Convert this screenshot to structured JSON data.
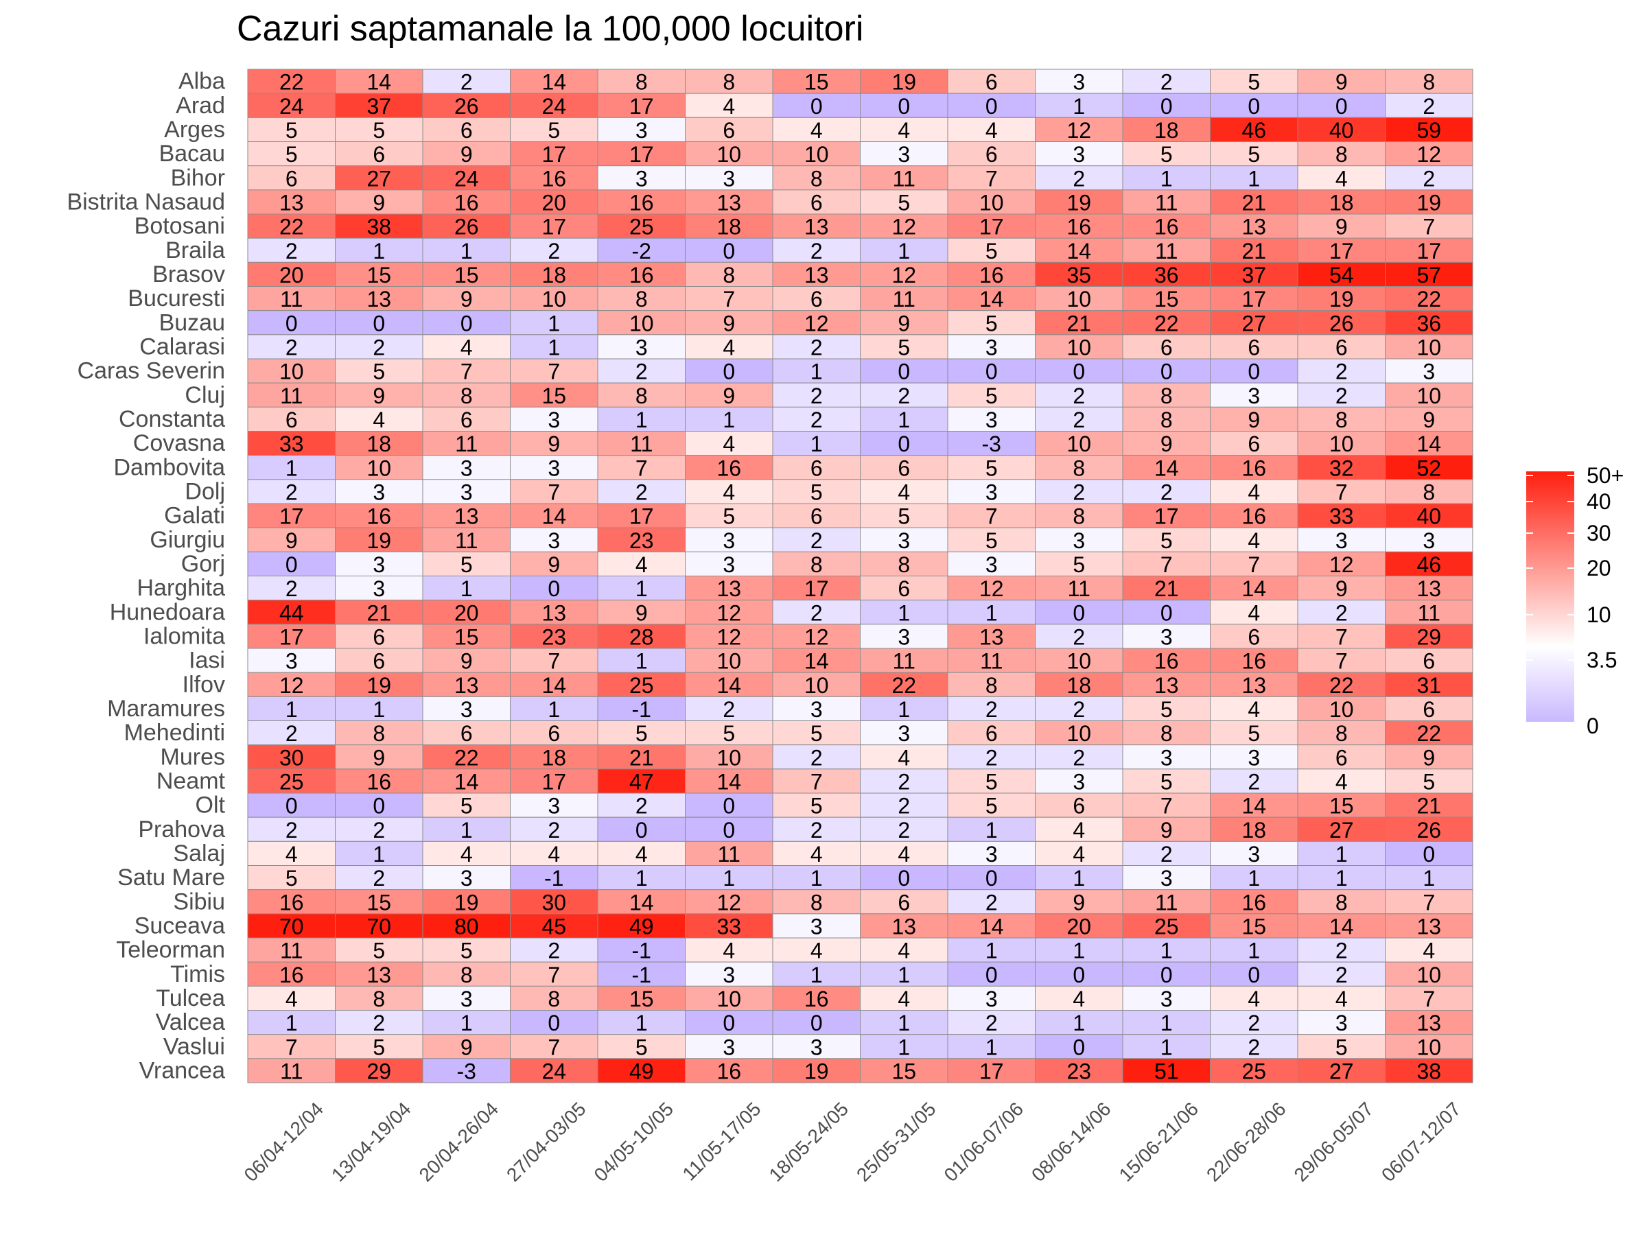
{
  "chart_data": {
    "type": "heatmap",
    "title": "Cazuri saptamanale la 100,000 locuitori",
    "xlabel": "",
    "ylabel": "",
    "columns": [
      "06/04-12/04",
      "13/04-19/04",
      "20/04-26/04",
      "27/04-03/05",
      "04/05-10/05",
      "11/05-17/05",
      "18/05-24/05",
      "25/05-31/05",
      "01/06-07/06",
      "08/06-14/06",
      "15/06-21/06",
      "22/06-28/06",
      "29/06-05/07",
      "06/07-12/07"
    ],
    "rows": [
      {
        "name": "Alba",
        "values": [
          22,
          14,
          2,
          14,
          8,
          8,
          15,
          19,
          6,
          3,
          2,
          5,
          9,
          8
        ]
      },
      {
        "name": "Arad",
        "values": [
          24,
          37,
          26,
          24,
          17,
          4,
          0,
          0,
          0,
          1,
          0,
          0,
          0,
          2
        ]
      },
      {
        "name": "Arges",
        "values": [
          5,
          5,
          6,
          5,
          3,
          6,
          4,
          4,
          4,
          12,
          18,
          46,
          40,
          59
        ]
      },
      {
        "name": "Bacau",
        "values": [
          5,
          6,
          9,
          17,
          17,
          10,
          10,
          3,
          6,
          3,
          5,
          5,
          8,
          12
        ]
      },
      {
        "name": "Bihor",
        "values": [
          6,
          27,
          24,
          16,
          3,
          3,
          8,
          11,
          7,
          2,
          1,
          1,
          4,
          2
        ]
      },
      {
        "name": "Bistrita Nasaud",
        "values": [
          13,
          9,
          16,
          20,
          16,
          13,
          6,
          5,
          10,
          19,
          11,
          21,
          18,
          19
        ]
      },
      {
        "name": "Botosani",
        "values": [
          22,
          38,
          26,
          17,
          25,
          18,
          13,
          12,
          17,
          16,
          16,
          13,
          9,
          7
        ]
      },
      {
        "name": "Braila",
        "values": [
          2,
          1,
          1,
          2,
          -2,
          0,
          2,
          1,
          5,
          14,
          11,
          21,
          17,
          17
        ]
      },
      {
        "name": "Brasov",
        "values": [
          20,
          15,
          15,
          18,
          16,
          8,
          13,
          12,
          16,
          35,
          36,
          37,
          54,
          57
        ]
      },
      {
        "name": "Bucuresti",
        "values": [
          11,
          13,
          9,
          10,
          8,
          7,
          6,
          11,
          14,
          10,
          15,
          17,
          19,
          22
        ]
      },
      {
        "name": "Buzau",
        "values": [
          0,
          0,
          0,
          1,
          10,
          9,
          12,
          9,
          5,
          21,
          22,
          27,
          26,
          36
        ]
      },
      {
        "name": "Calarasi",
        "values": [
          2,
          2,
          4,
          1,
          3,
          4,
          2,
          5,
          3,
          10,
          6,
          6,
          6,
          10
        ]
      },
      {
        "name": "Caras Severin",
        "values": [
          10,
          5,
          7,
          7,
          2,
          0,
          1,
          0,
          0,
          0,
          0,
          0,
          2,
          3
        ]
      },
      {
        "name": "Cluj",
        "values": [
          11,
          9,
          8,
          15,
          8,
          9,
          2,
          2,
          5,
          2,
          8,
          3,
          2,
          10
        ]
      },
      {
        "name": "Constanta",
        "values": [
          6,
          4,
          6,
          3,
          1,
          1,
          2,
          1,
          3,
          2,
          8,
          9,
          8,
          9
        ]
      },
      {
        "name": "Covasna",
        "values": [
          33,
          18,
          11,
          9,
          11,
          4,
          1,
          0,
          -3,
          10,
          9,
          6,
          10,
          14
        ]
      },
      {
        "name": "Dambovita",
        "values": [
          1,
          10,
          3,
          3,
          7,
          16,
          6,
          6,
          5,
          8,
          14,
          16,
          32,
          52
        ]
      },
      {
        "name": "Dolj",
        "values": [
          2,
          3,
          3,
          7,
          2,
          4,
          5,
          4,
          3,
          2,
          2,
          4,
          7,
          8
        ]
      },
      {
        "name": "Galati",
        "values": [
          17,
          16,
          13,
          14,
          17,
          5,
          6,
          5,
          7,
          8,
          17,
          16,
          33,
          40
        ]
      },
      {
        "name": "Giurgiu",
        "values": [
          9,
          19,
          11,
          3,
          23,
          3,
          2,
          3,
          5,
          3,
          5,
          4,
          3,
          3
        ]
      },
      {
        "name": "Gorj",
        "values": [
          0,
          3,
          5,
          9,
          4,
          3,
          8,
          8,
          3,
          5,
          7,
          7,
          12,
          46
        ]
      },
      {
        "name": "Harghita",
        "values": [
          2,
          3,
          1,
          0,
          1,
          13,
          17,
          6,
          12,
          11,
          21,
          14,
          9,
          13
        ]
      },
      {
        "name": "Hunedoara",
        "values": [
          44,
          21,
          20,
          13,
          9,
          12,
          2,
          1,
          1,
          0,
          0,
          4,
          2,
          11
        ]
      },
      {
        "name": "Ialomita",
        "values": [
          17,
          6,
          15,
          23,
          28,
          12,
          12,
          3,
          13,
          2,
          3,
          6,
          7,
          29
        ]
      },
      {
        "name": "Iasi",
        "values": [
          3,
          6,
          9,
          7,
          1,
          10,
          14,
          11,
          11,
          10,
          16,
          16,
          7,
          6
        ]
      },
      {
        "name": "Ilfov",
        "values": [
          12,
          19,
          13,
          14,
          25,
          14,
          10,
          22,
          8,
          18,
          13,
          13,
          22,
          31
        ]
      },
      {
        "name": "Maramures",
        "values": [
          1,
          1,
          3,
          1,
          -1,
          2,
          3,
          1,
          2,
          2,
          5,
          4,
          10,
          6
        ]
      },
      {
        "name": "Mehedinti",
        "values": [
          2,
          8,
          6,
          6,
          5,
          5,
          5,
          3,
          6,
          10,
          8,
          5,
          8,
          22
        ]
      },
      {
        "name": "Mures",
        "values": [
          30,
          9,
          22,
          18,
          21,
          10,
          2,
          4,
          2,
          2,
          3,
          3,
          6,
          9
        ]
      },
      {
        "name": "Neamt",
        "values": [
          25,
          16,
          14,
          17,
          47,
          14,
          7,
          2,
          5,
          3,
          5,
          2,
          4,
          5
        ]
      },
      {
        "name": "Olt",
        "values": [
          0,
          0,
          5,
          3,
          2,
          0,
          5,
          2,
          5,
          6,
          7,
          14,
          15,
          21
        ]
      },
      {
        "name": "Prahova",
        "values": [
          2,
          2,
          1,
          2,
          0,
          0,
          2,
          2,
          1,
          4,
          9,
          18,
          27,
          26
        ]
      },
      {
        "name": "Salaj",
        "values": [
          4,
          1,
          4,
          4,
          4,
          11,
          4,
          4,
          3,
          4,
          2,
          3,
          1,
          0
        ]
      },
      {
        "name": "Satu Mare",
        "values": [
          5,
          2,
          3,
          -1,
          1,
          1,
          1,
          0,
          0,
          1,
          3,
          1,
          1,
          1
        ]
      },
      {
        "name": "Sibiu",
        "values": [
          16,
          15,
          19,
          30,
          14,
          12,
          8,
          6,
          2,
          9,
          11,
          16,
          8,
          7
        ]
      },
      {
        "name": "Suceava",
        "values": [
          70,
          70,
          80,
          45,
          49,
          33,
          3,
          13,
          14,
          20,
          25,
          15,
          14,
          13
        ]
      },
      {
        "name": "Teleorman",
        "values": [
          11,
          5,
          5,
          2,
          -1,
          4,
          4,
          4,
          1,
          1,
          1,
          1,
          2,
          4
        ]
      },
      {
        "name": "Timis",
        "values": [
          16,
          13,
          8,
          7,
          -1,
          3,
          1,
          1,
          0,
          0,
          0,
          0,
          2,
          10
        ]
      },
      {
        "name": "Tulcea",
        "values": [
          4,
          8,
          3,
          8,
          15,
          10,
          16,
          4,
          3,
          4,
          3,
          4,
          4,
          7
        ]
      },
      {
        "name": "Valcea",
        "values": [
          1,
          2,
          1,
          0,
          1,
          0,
          0,
          1,
          2,
          1,
          1,
          2,
          3,
          13
        ]
      },
      {
        "name": "Vaslui",
        "values": [
          7,
          5,
          9,
          7,
          5,
          3,
          3,
          1,
          1,
          0,
          1,
          2,
          5,
          10
        ]
      },
      {
        "name": "Vrancea",
        "values": [
          11,
          29,
          -3,
          24,
          49,
          16,
          19,
          15,
          17,
          23,
          51,
          25,
          27,
          38
        ]
      }
    ],
    "color_scale": {
      "low": "#c9b8ff",
      "mid": "#ffffff",
      "high": "#ff1f0f",
      "mid_value": 3.5,
      "max_value": 50,
      "legend_labels": [
        "50+",
        "40",
        "30",
        "20",
        "10",
        "3.5",
        "0"
      ]
    },
    "grid": false,
    "legend_position": "right"
  }
}
